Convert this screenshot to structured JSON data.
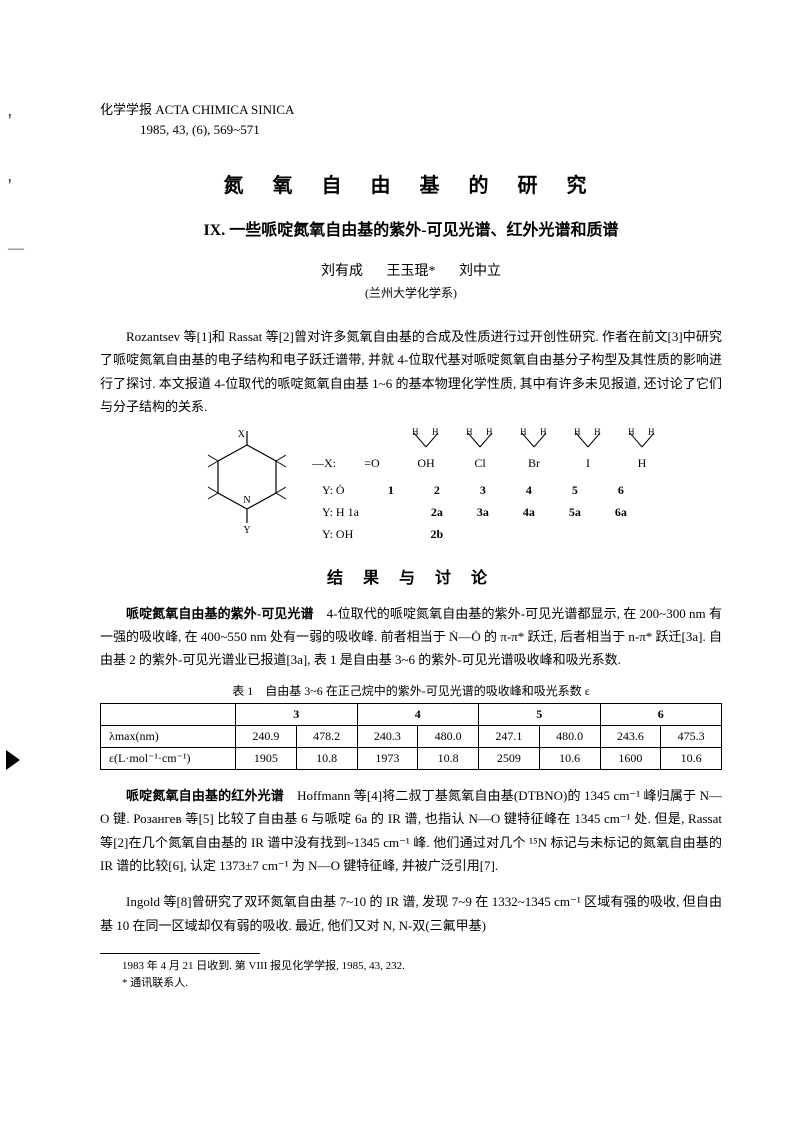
{
  "journal": {
    "name_cn": "化学学报",
    "name_en": "ACTA CHIMICA SINICA",
    "issue": "1985, 43, (6), 569~571"
  },
  "title": "氮 氧 自 由 基 的 研 究",
  "subtitle": "IX. 一些哌啶氮氧自由基的紫外-可见光谱、红外光谱和质谱",
  "authors": [
    "刘有成",
    "王玉琨*",
    "刘中立"
  ],
  "affiliation": "(兰州大学化学系)",
  "intro_para": "Rozantsev 等[1]和 Rassat 等[2]曾对许多氮氧自由基的合成及性质进行过开创性研究. 作者在前文[3]中研究了哌啶氮氧自由基的电子结构和电子跃迁谱带, 并就 4-位取代基对哌啶氮氧自由基分子构型及其性质的影响进行了探讨. 本文报道 4-位取代的哌啶氮氧自由基 1~6 的基本物理化学性质, 其中有许多未见报道, 还讨论了它们与分子结构的关系.",
  "structure": {
    "x_label": "—X:",
    "x_subs": [
      "=O",
      "H/OH",
      "H/Cl",
      "H/Br",
      "H/I",
      "H/H"
    ],
    "y_rows": [
      {
        "label": "Y: Ȯ",
        "vals": [
          "1",
          "2",
          "3",
          "4",
          "5",
          "6"
        ]
      },
      {
        "label": "Y: H 1a",
        "vals": [
          "",
          "2a",
          "3a",
          "4a",
          "5a",
          "6a"
        ]
      },
      {
        "label": "Y: OH",
        "vals": [
          "",
          "2b",
          "",
          "",
          "",
          ""
        ]
      }
    ]
  },
  "section_heading": "结 果 与 讨 论",
  "uvvis": {
    "heading": "哌啶氮氧自由基的紫外-可见光谱",
    "text": "4-位取代的哌啶氮氧自由基的紫外-可见光谱都显示, 在 200~300 nm 有一强的吸收峰, 在 400~550 nm 处有一弱的吸收峰. 前者相当于 Ṅ—Ȯ 的 π-π* 跃迁, 后者相当于 n-π* 跃迁[3a]. 自由基 2 的紫外-可见光谱业已报道[3a], 表 1 是自由基 3~6 的紫外-可见光谱吸收峰和吸光系数."
  },
  "table1": {
    "caption": "表 1　自由基 3~6 在正己烷中的紫外-可见光谱的吸收峰和吸光系数 ε",
    "col_groups": [
      "3",
      "4",
      "5",
      "6"
    ],
    "row_labels": [
      "λmax(nm)",
      "ε(L·mol⁻¹·cm⁻¹)"
    ],
    "rows": [
      [
        "240.9",
        "478.2",
        "240.3",
        "480.0",
        "247.1",
        "480.0",
        "243.6",
        "475.3"
      ],
      [
        "1905",
        "10.8",
        "1973",
        "10.8",
        "2509",
        "10.6",
        "1600",
        "10.6"
      ]
    ]
  },
  "ir": {
    "heading": "哌啶氮氧自由基的红外光谱",
    "text1": "Hoffmann 等[4]将二叔丁基氮氧自由基(DTBNO)的 1345 cm⁻¹ 峰归属于 N—O 键. Розангев 等[5] 比较了自由基 6 与哌啶 6a 的 IR 谱, 也指认 N—O 键特征峰在 1345 cm⁻¹ 处.  但是, Rassat 等[2]在几个氮氧自由基的 IR 谱中没有找到~1345 cm⁻¹ 峰. 他们通过对几个 ¹⁵N 标记与未标记的氮氧自由基的 IR 谱的比较[6], 认定 1373±7 cm⁻¹ 为 N—O 键特征峰, 并被广泛引用[7].",
    "text2": "Ingold 等[8]曾研究了双环氮氧自由基 7~10 的 IR 谱, 发现 7~9 在 1332~1345 cm⁻¹ 区域有强的吸收, 但自由基 10 在同一区域却仅有弱的吸收. 最近, 他们又对 N, N-双(三氟甲基)"
  },
  "footnotes": [
    "1983 年 4 月 21 日收到.  第 VIII 报见化学学报, 1985, 43, 232.",
    "* 通讯联系人."
  ],
  "colors": {
    "text": "#000000",
    "bg": "#ffffff",
    "border": "#000000"
  }
}
